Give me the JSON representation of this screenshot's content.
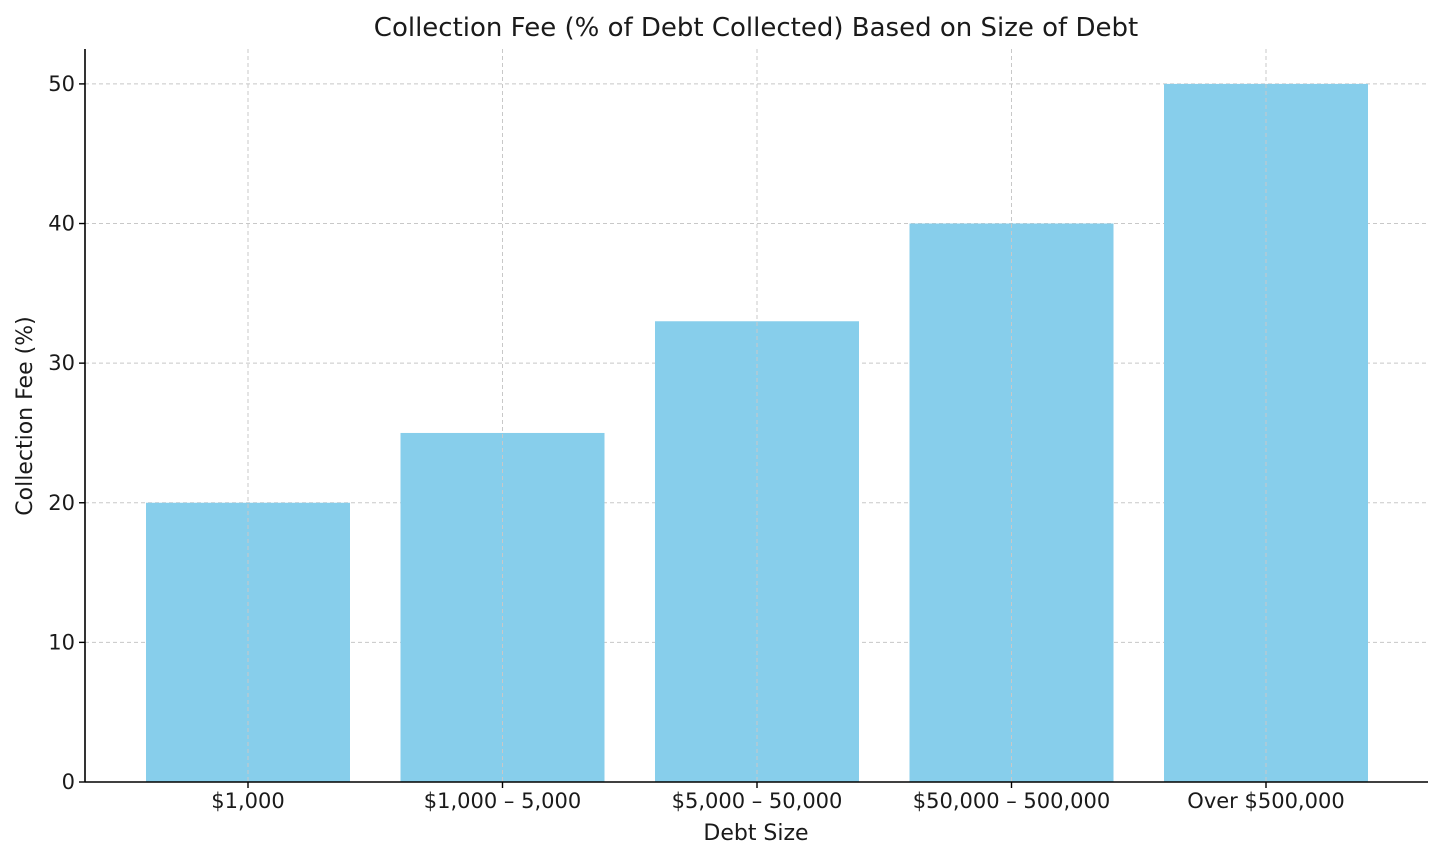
{
  "chart_data": {
    "type": "bar",
    "title": "Collection Fee (% of Debt Collected) Based on Size of Debt",
    "xlabel": "Debt Size",
    "ylabel": "Collection Fee (%)",
    "categories": [
      "$1,000",
      "$1,000 – 5,000",
      "$5,000 – 50,000",
      "$50,000 – 500,000",
      "Over $500,000"
    ],
    "values": [
      20,
      25,
      33,
      40,
      50
    ],
    "ylim": [
      0,
      52.5
    ],
    "yticks": [
      0,
      10,
      20,
      30,
      40,
      50
    ],
    "grid": true,
    "bar_color": "#87CEEB"
  }
}
